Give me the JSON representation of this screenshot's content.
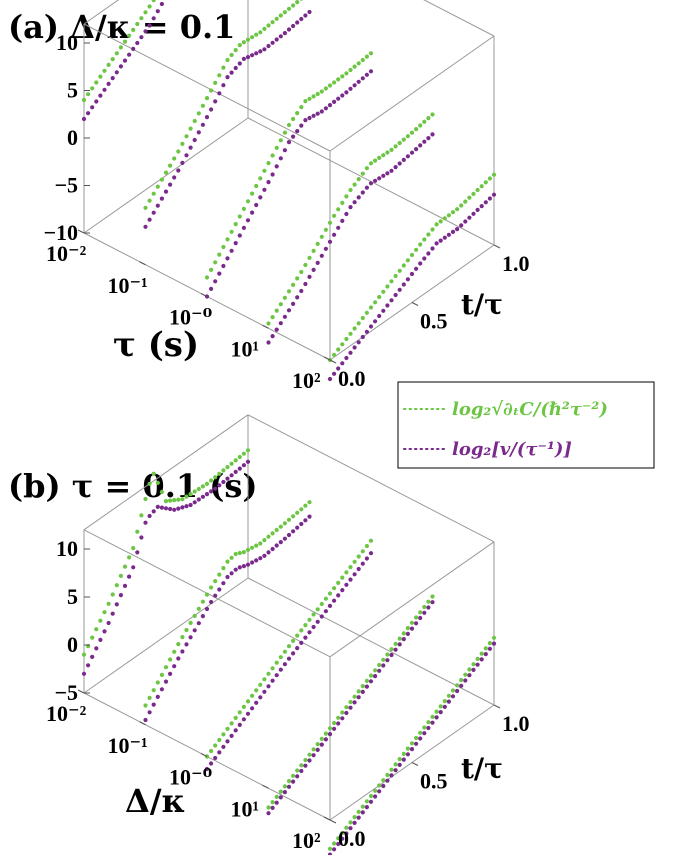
{
  "legend": [
    {
      "label": "log₂√∂ₜC/(ℏ²τ⁻²)",
      "color": "#6cc644"
    },
    {
      "label": "log₂[v/(τ⁻¹)]",
      "color": "#7a2a8c"
    }
  ],
  "chart_data": [
    {
      "type": "scatter3d",
      "title": "(a) Δ/κ = 0.1",
      "x_axis": {
        "label": "τ (s)",
        "scale": "log",
        "ticks": [
          "10⁻²",
          "10⁻¹",
          "10⁻⁰",
          "10¹",
          "10²"
        ]
      },
      "y_axis": {
        "label": "t/τ",
        "range": [
          0,
          1
        ],
        "ticks": [
          "0.0",
          "0.5",
          "1.0"
        ]
      },
      "z_axis": {
        "label": "",
        "range": [
          -10,
          12
        ],
        "ticks": [
          "10",
          "5",
          "0",
          "−5",
          "−10"
        ]
      },
      "series": [
        {
          "color": "#6cc644",
          "curves": [
            {
              "x": 0.01,
              "points": [
                [
                  0,
                  4
                ],
                [
                  0.2,
                  6.5
                ],
                [
                  0.4,
                  9
                ],
                [
                  0.5,
                  10.5
                ],
                [
                  0.55,
                  10.8
                ],
                [
                  0.7,
                  10.9
                ],
                [
                  0.85,
                  11.2
                ],
                [
                  1,
                  11.5
                ]
              ]
            },
            {
              "x": 0.1,
              "points": [
                [
                  0,
                  -4
                ],
                [
                  0.2,
                  -0.5
                ],
                [
                  0.4,
                  3.5
                ],
                [
                  0.5,
                  5.5
                ],
                [
                  0.58,
                  6.2
                ],
                [
                  0.7,
                  6
                ],
                [
                  0.85,
                  6.3
                ],
                [
                  1,
                  6.6
                ]
              ]
            },
            {
              "x": 1,
              "points": [
                [
                  0,
                  -8
                ],
                [
                  0.2,
                  -4
                ],
                [
                  0.4,
                  0
                ],
                [
                  0.5,
                  2
                ],
                [
                  0.6,
                  3.3
                ],
                [
                  0.7,
                  3.1
                ],
                [
                  0.85,
                  3.2
                ],
                [
                  1,
                  3.5
                ]
              ]
            },
            {
              "x": 10,
              "points": [
                [
                  0,
                  -9.5
                ],
                [
                  0.2,
                  -6.5
                ],
                [
                  0.4,
                  -3
                ],
                [
                  0.5,
                  -1.5
                ],
                [
                  0.62,
                  -0.2
                ],
                [
                  0.75,
                  -0.3
                ],
                [
                  0.88,
                  0
                ],
                [
                  1,
                  0.4
                ]
              ]
            },
            {
              "x": 100,
              "points": [
                [
                  0,
                  -10
                ],
                [
                  0.2,
                  -8
                ],
                [
                  0.4,
                  -6
                ],
                [
                  0.55,
                  -4.5
                ],
                [
                  0.65,
                  -3.6
                ],
                [
                  0.78,
                  -3.5
                ],
                [
                  0.9,
                  -3
                ],
                [
                  1,
                  -2.6
                ]
              ]
            }
          ]
        },
        {
          "color": "#7a2a8c",
          "curves": [
            {
              "x": 0.01,
              "points": [
                [
                  0,
                  2
                ],
                [
                  0.2,
                  4.5
                ],
                [
                  0.4,
                  7
                ],
                [
                  0.5,
                  8.8
                ],
                [
                  0.55,
                  9.2
                ],
                [
                  0.7,
                  8.8
                ],
                [
                  0.85,
                  9.2
                ],
                [
                  1,
                  9.6
                ]
              ]
            },
            {
              "x": 0.1,
              "points": [
                [
                  0,
                  -6
                ],
                [
                  0.2,
                  -2.5
                ],
                [
                  0.4,
                  1.5
                ],
                [
                  0.5,
                  3.7
                ],
                [
                  0.6,
                  4.4
                ],
                [
                  0.72,
                  3.9
                ],
                [
                  0.85,
                  4.1
                ],
                [
                  1,
                  4.5
                ]
              ]
            },
            {
              "x": 1,
              "points": [
                [
                  0,
                  -10
                ],
                [
                  0.2,
                  -6
                ],
                [
                  0.4,
                  -2
                ],
                [
                  0.5,
                  0.2
                ],
                [
                  0.6,
                  1.3
                ],
                [
                  0.7,
                  1
                ],
                [
                  0.85,
                  1.2
                ],
                [
                  1,
                  1.6
                ]
              ]
            },
            {
              "x": 10,
              "points": [
                [
                  0,
                  -11.5
                ],
                [
                  0.2,
                  -8.5
                ],
                [
                  0.4,
                  -5
                ],
                [
                  0.5,
                  -3.3
                ],
                [
                  0.62,
                  -2.3
                ],
                [
                  0.75,
                  -2.5
                ],
                [
                  0.88,
                  -2.1
                ],
                [
                  1,
                  -1.7
                ]
              ]
            },
            {
              "x": 100,
              "points": [
                [
                  0,
                  -12
                ],
                [
                  0.2,
                  -10
                ],
                [
                  0.4,
                  -8
                ],
                [
                  0.55,
                  -6.5
                ],
                [
                  0.65,
                  -5.6
                ],
                [
                  0.78,
                  -5.6
                ],
                [
                  0.9,
                  -5.1
                ],
                [
                  1,
                  -4.7
                ]
              ]
            }
          ]
        }
      ]
    },
    {
      "type": "scatter3d",
      "title": "(b) τ = 0.1 (s)",
      "x_axis": {
        "label": "Δ/κ",
        "scale": "log",
        "ticks": [
          "10⁻²",
          "10⁻¹",
          "10⁻⁰",
          "10¹",
          "10²"
        ]
      },
      "y_axis": {
        "label": "t/τ",
        "range": [
          0,
          1
        ],
        "ticks": [
          "0.0",
          "0.5",
          "1.0"
        ]
      },
      "z_axis": {
        "label": "",
        "range": [
          -5,
          12
        ],
        "ticks": [
          "10",
          "5",
          "0",
          "−5"
        ]
      },
      "series": [
        {
          "color": "#6cc644",
          "curves": [
            {
              "x": 0.01,
              "points": [
                [
                  0,
                  -1
                ],
                [
                  0.15,
                  2.5
                ],
                [
                  0.3,
                  6.5
                ],
                [
                  0.38,
                  11
                ],
                [
                  0.42,
                  13
                ],
                [
                  0.5,
                  9
                ],
                [
                  0.6,
                  8
                ],
                [
                  0.75,
                  7.8
                ],
                [
                  1,
                  8.3
                ]
              ]
            },
            {
              "x": 0.1,
              "points": [
                [
                  0,
                  -3
                ],
                [
                  0.2,
                  1
                ],
                [
                  0.4,
                  4.5
                ],
                [
                  0.5,
                  6
                ],
                [
                  0.55,
                  6.2
                ],
                [
                  0.6,
                  5.8
                ],
                [
                  0.7,
                  5.5
                ],
                [
                  0.85,
                  5.8
                ],
                [
                  1,
                  6.2
                ]
              ]
            },
            {
              "x": 1,
              "points": [
                [
                  0,
                  -5
                ],
                [
                  0.5,
                  0.5
                ],
                [
                  1,
                  5.5
                ]
              ]
            },
            {
              "x": 10,
              "points": [
                [
                  0,
                  -7
                ],
                [
                  0.5,
                  -2
                ],
                [
                  1,
                  3
                ]
              ]
            },
            {
              "x": 100,
              "points": [
                [
                  0,
                  -8
                ],
                [
                  0.5,
                  -3
                ],
                [
                  1,
                  2
                ]
              ]
            }
          ]
        },
        {
          "color": "#7a2a8c",
          "curves": [
            {
              "x": 0.01,
              "points": [
                [
                  0,
                  -3
                ],
                [
                  0.15,
                  0.5
                ],
                [
                  0.3,
                  4.5
                ],
                [
                  0.38,
                  8.5
                ],
                [
                  0.45,
                  9
                ],
                [
                  0.55,
                  7.5
                ],
                [
                  0.65,
                  6.8
                ],
                [
                  0.8,
                  6.7
                ],
                [
                  1,
                  7.1
                ]
              ]
            },
            {
              "x": 0.1,
              "points": [
                [
                  0,
                  -4.5
                ],
                [
                  0.2,
                  -0.5
                ],
                [
                  0.4,
                  3
                ],
                [
                  0.5,
                  4.4
                ],
                [
                  0.56,
                  4.6
                ],
                [
                  0.62,
                  4.2
                ],
                [
                  0.72,
                  3.9
                ],
                [
                  0.85,
                  4.2
                ],
                [
                  1,
                  4.7
                ]
              ]
            },
            {
              "x": 1,
              "points": [
                [
                  0,
                  -6.3
                ],
                [
                  0.5,
                  -0.8
                ],
                [
                  1,
                  4.2
                ]
              ]
            },
            {
              "x": 10,
              "points": [
                [
                  0,
                  -7.6
                ],
                [
                  0.5,
                  -2.6
                ],
                [
                  1,
                  2.4
                ]
              ]
            },
            {
              "x": 100,
              "points": [
                [
                  0,
                  -8.6
                ],
                [
                  0.5,
                  -3.6
                ],
                [
                  1,
                  1.4
                ]
              ]
            }
          ]
        }
      ]
    }
  ]
}
